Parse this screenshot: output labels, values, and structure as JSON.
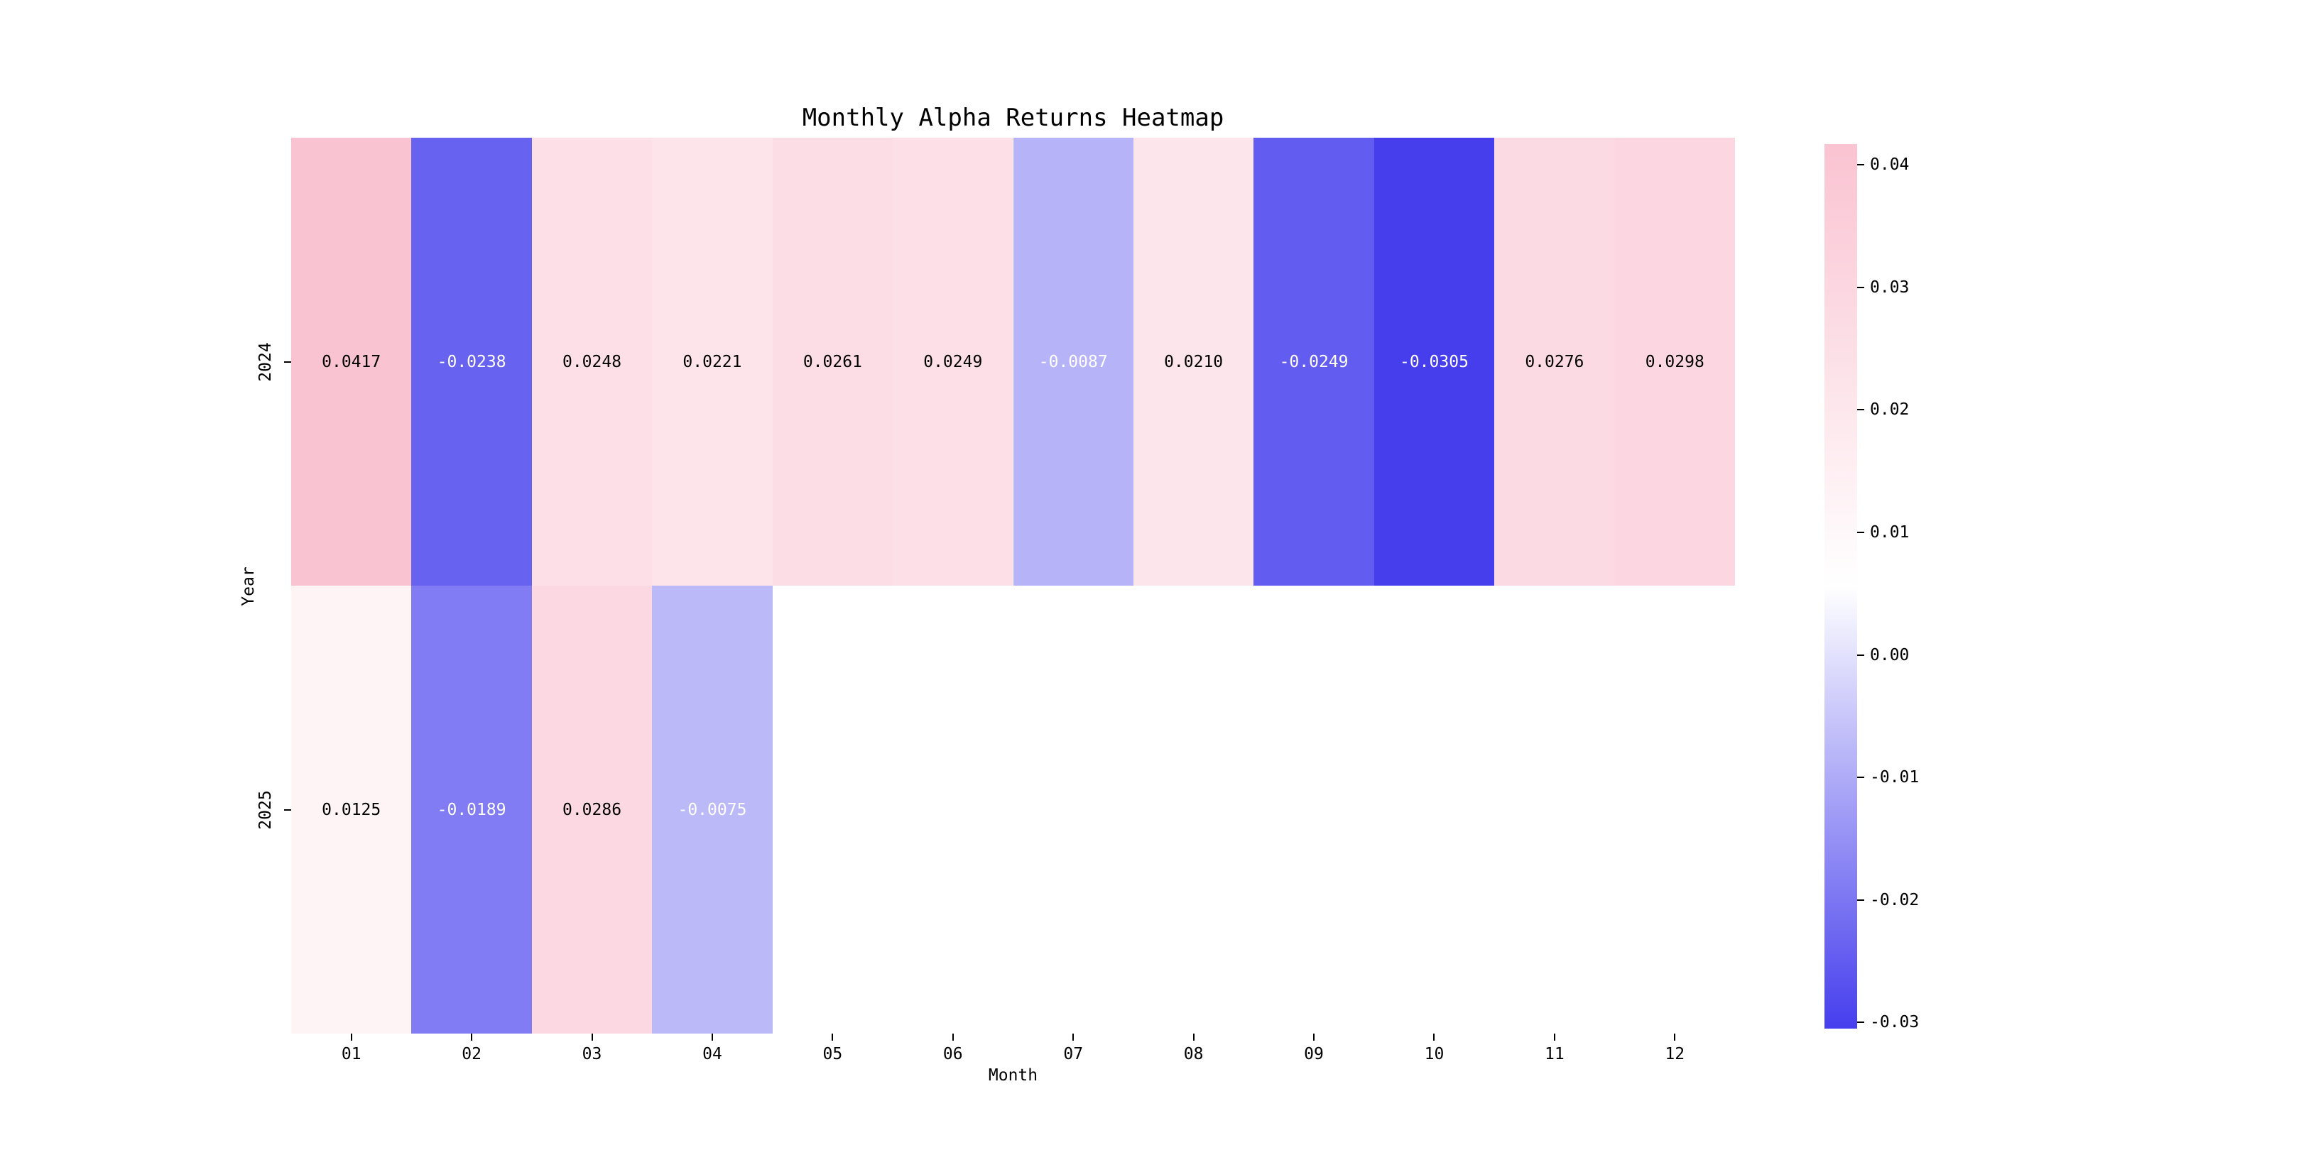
{
  "title": "Monthly Alpha Returns Heatmap",
  "chart_data": {
    "type": "heatmap",
    "title": "Monthly Alpha Returns Heatmap",
    "xlabel": "Month",
    "ylabel": "Year",
    "x_categories": [
      "01",
      "02",
      "03",
      "04",
      "05",
      "06",
      "07",
      "08",
      "09",
      "10",
      "11",
      "12"
    ],
    "y_categories": [
      "2024",
      "2025"
    ],
    "values": [
      [
        0.0417,
        -0.0238,
        0.0248,
        0.0221,
        0.0261,
        0.0249,
        -0.0087,
        0.021,
        -0.0249,
        -0.0305,
        0.0276,
        0.0298
      ],
      [
        0.0125,
        -0.0189,
        0.0286,
        -0.0075,
        null,
        null,
        null,
        null,
        null,
        null,
        null,
        null
      ]
    ],
    "value_labels": [
      [
        "0.0417",
        "-0.0238",
        "0.0248",
        "0.0221",
        "0.0261",
        "0.0249",
        "-0.0087",
        "0.0210",
        "-0.0249",
        "-0.0305",
        "0.0276",
        "0.0298"
      ],
      [
        "0.0125",
        "-0.0189",
        "0.0286",
        "-0.0075",
        "",
        "",
        "",
        "",
        "",
        "",
        "",
        ""
      ]
    ],
    "colorbar": {
      "vmin": -0.0305,
      "vmax": 0.0417,
      "tick_labels": [
        "0.04",
        "0.03",
        "0.02",
        "0.01",
        "0.00",
        "-0.01",
        "-0.02",
        "-0.03"
      ],
      "tick_values": [
        0.04,
        0.03,
        0.02,
        0.01,
        0.0,
        -0.01,
        -0.02,
        -0.03
      ]
    },
    "colors": {
      "positive_max": "#fac3d2",
      "negative_min": "#463eed",
      "mid": "#ffffff",
      "masked_cell": "#ffffff",
      "positive_text": "#000000",
      "negative_text": "#ffffff",
      "background": "#ffffff"
    },
    "legend_position": "right-colorbar",
    "grid": false
  }
}
